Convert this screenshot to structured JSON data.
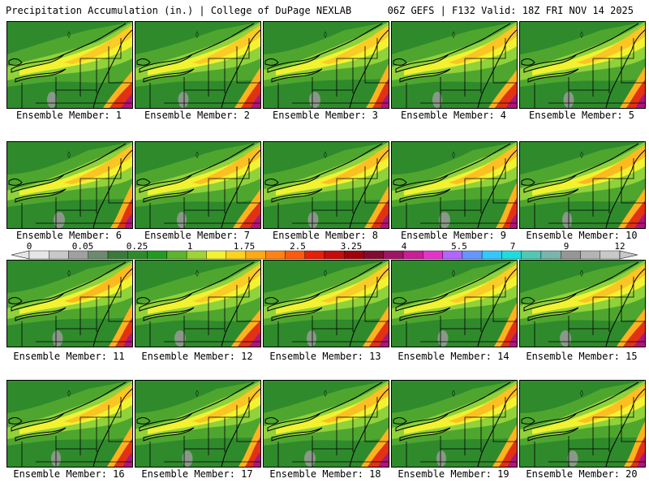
{
  "header": {
    "left_title": "Precipitation Accumulation (in.) | College of DuPage NEXLAB",
    "right_title": "06Z GEFS | F132 Valid: 18Z FRI NOV 14 2025"
  },
  "members": [
    {
      "label": "Ensemble Member: 1"
    },
    {
      "label": "Ensemble Member: 2"
    },
    {
      "label": "Ensemble Member: 3"
    },
    {
      "label": "Ensemble Member: 4"
    },
    {
      "label": "Ensemble Member: 5"
    },
    {
      "label": "Ensemble Member: 6"
    },
    {
      "label": "Ensemble Member: 7"
    },
    {
      "label": "Ensemble Member: 8"
    },
    {
      "label": "Ensemble Member: 9"
    },
    {
      "label": "Ensemble Member: 10"
    },
    {
      "label": "Ensemble Member: 11"
    },
    {
      "label": "Ensemble Member: 12"
    },
    {
      "label": "Ensemble Member: 13"
    },
    {
      "label": "Ensemble Member: 14"
    },
    {
      "label": "Ensemble Member: 15"
    },
    {
      "label": "Ensemble Member: 16"
    },
    {
      "label": "Ensemble Member: 17"
    },
    {
      "label": "Ensemble Member: 18"
    },
    {
      "label": "Ensemble Member: 19"
    },
    {
      "label": "Ensemble Member: 20"
    }
  ],
  "colorbar": {
    "tick_labels": [
      "0",
      "0.05",
      "0.25",
      "1",
      "1.75",
      "2.5",
      "3.25",
      "4",
      "5.5",
      "7",
      "9",
      "12"
    ],
    "colors": [
      "#e6e6e6",
      "#c8c8c8",
      "#a0a0a0",
      "#6e8a6e",
      "#3c7a3c",
      "#2f8a2c",
      "#239b23",
      "#5cb52c",
      "#9ed433",
      "#f2f230",
      "#ffd21e",
      "#ffaa14",
      "#ff8214",
      "#ff5a0f",
      "#e61e0a",
      "#c80a0a",
      "#a0000a",
      "#820a32",
      "#a01464",
      "#c81e96",
      "#e632c8",
      "#b464ff",
      "#6496ff",
      "#32c8ff",
      "#1edcdc",
      "#50c8b4",
      "#7ab4aa",
      "#969696",
      "#b4b4b4",
      "#c8c8c8"
    ]
  },
  "palette": {
    "dark_green": "#2f8a2c",
    "mid_green": "#4ea62f",
    "light_green": "#8fd23a",
    "yellow": "#f2f230",
    "orange": "#ffb21e",
    "red": "#e23214",
    "magenta": "#b0147a",
    "gray": "#9a9a9a"
  }
}
